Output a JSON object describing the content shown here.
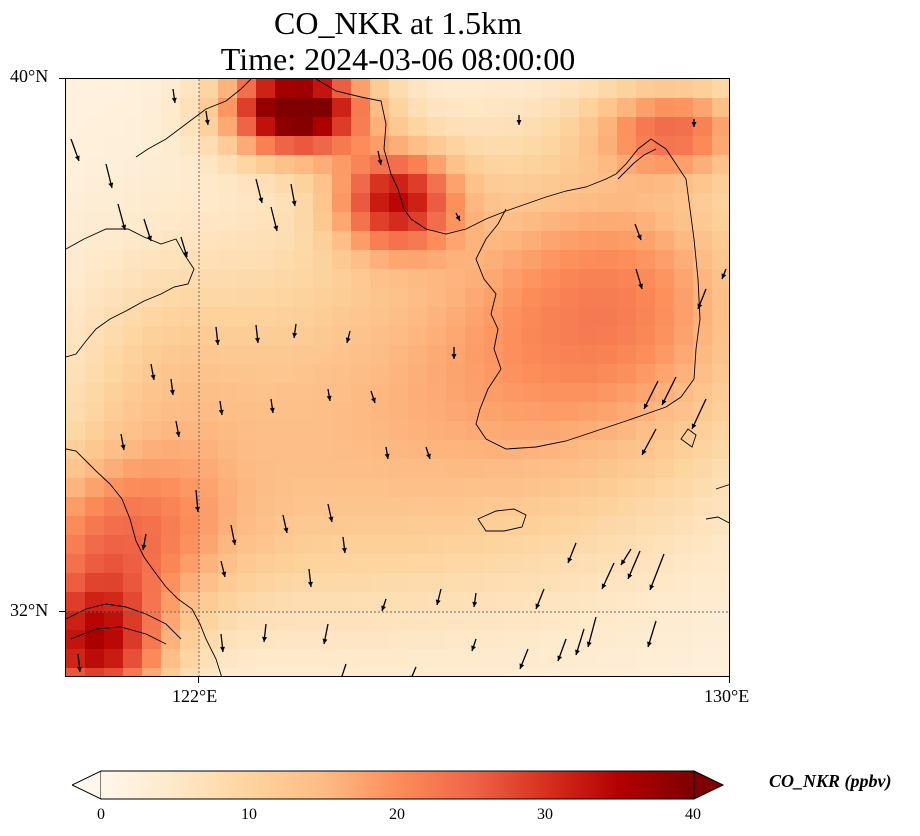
{
  "title": {
    "line1": "CO_NKR at 1.5km",
    "line2": "Time: 2024-03-06 08:00:00"
  },
  "map": {
    "lon_range": [
      120.0,
      130.0
    ],
    "lat_range": [
      31.0,
      40.0
    ],
    "grid": "dotted lines at 122°E and 32°N",
    "variable": "CO_NKR concentration field at 1.5 km with wind vectors",
    "lat_ticks": [
      "40°N",
      "32°N"
    ],
    "lon_ticks": [
      "122°E",
      "130°E"
    ]
  },
  "colorbar": {
    "label": "CO_NKR (ppbv)",
    "min": 0,
    "max": 40,
    "extend": "both",
    "ticks": [
      "0",
      "10",
      "20",
      "30",
      "40"
    ],
    "colormap": [
      "#fff7ec",
      "#fee8c8",
      "#fdd49e",
      "#fdbb84",
      "#fc8d59",
      "#ef6548",
      "#d7301f",
      "#b30000",
      "#7f0000"
    ]
  }
}
